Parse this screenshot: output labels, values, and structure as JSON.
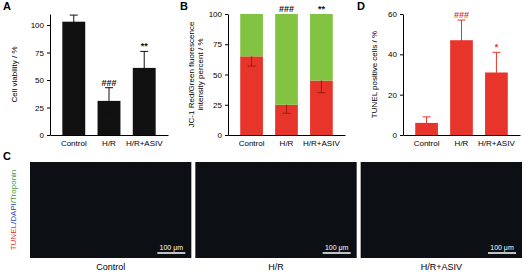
{
  "chart_data": [
    {
      "type": "bar",
      "title": "A",
      "y_label": "Cell viability / %",
      "categories": [
        "Control",
        "H/R",
        "H/R+ASIV"
      ],
      "values": [
        103,
        31,
        61
      ],
      "errors": [
        6,
        12,
        15
      ],
      "significance": [
        null,
        "###",
        "**"
      ],
      "color": "#111111",
      "ylim": [
        0,
        110
      ],
      "yticks": [
        0,
        25,
        50,
        75,
        100
      ]
    },
    {
      "type": "bar",
      "stacked": true,
      "title": "B",
      "y_label": "JC-1 Red/Green fluorescence intensity percent / %",
      "categories": [
        "Control",
        "H/R",
        "H/R+ASIV"
      ],
      "series": [
        {
          "name": "Red",
          "color": "#e8352b",
          "values": [
            65,
            25,
            45
          ],
          "errors": [
            8,
            7,
            10
          ]
        },
        {
          "name": "Green",
          "color": "#82c341",
          "values": [
            35,
            75,
            55
          ]
        }
      ],
      "significance": [
        null,
        "###",
        "**"
      ],
      "ylim": [
        0,
        100
      ],
      "yticks": [
        0,
        25,
        50,
        75,
        100
      ]
    },
    {
      "type": "bar",
      "title": "D",
      "y_label": "TUNEL positive cells / %",
      "categories": [
        "Control",
        "H/R",
        "H/R+ASIV"
      ],
      "values": [
        6,
        47,
        31
      ],
      "errors": [
        3,
        10,
        10
      ],
      "significance": [
        null,
        "###",
        "*"
      ],
      "color": "#e8352b",
      "ylim": [
        0,
        60
      ],
      "yticks": [
        0,
        20,
        40,
        60
      ]
    }
  ],
  "images": {
    "title": "C",
    "y_label": [
      {
        "text": "TUNEL",
        "color": "#e8352b"
      },
      {
        "text": "/DAPI",
        "color": "#2b3fc4"
      },
      {
        "text": "/Troponin",
        "color": "#3a9a3a"
      }
    ],
    "panels": [
      {
        "label": "Control",
        "scale_bar": "100 μm"
      },
      {
        "label": "H/R",
        "scale_bar": "100 μm"
      },
      {
        "label": "H/R+ASIV",
        "scale_bar": "100 μm"
      }
    ]
  }
}
